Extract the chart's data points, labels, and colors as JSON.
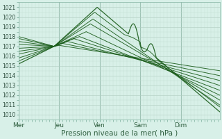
{
  "background_color": "#d8f0e8",
  "plot_bg_color": "#d8f0e8",
  "line_color": "#1a5c1a",
  "grid_color_minor": "#c8e0d8",
  "grid_color_major": "#b0d0c0",
  "xlabel": "Pression niveau de la mer( hPa )",
  "ylim": [
    1009.5,
    1021.5
  ],
  "yticks": [
    1010,
    1011,
    1012,
    1013,
    1014,
    1015,
    1016,
    1017,
    1018,
    1019,
    1020,
    1021
  ],
  "xtick_labels": [
    "Mer",
    "Jeu",
    "Ven",
    "Sam",
    "Dim"
  ],
  "xtick_positions": [
    0,
    48,
    96,
    144,
    192
  ],
  "day_line_positions": [
    0,
    48,
    96,
    144,
    192
  ],
  "total_hours": 238,
  "xlabel_fontsize": 7.5,
  "ytick_fontsize": 5.5,
  "xtick_fontsize": 6.5
}
